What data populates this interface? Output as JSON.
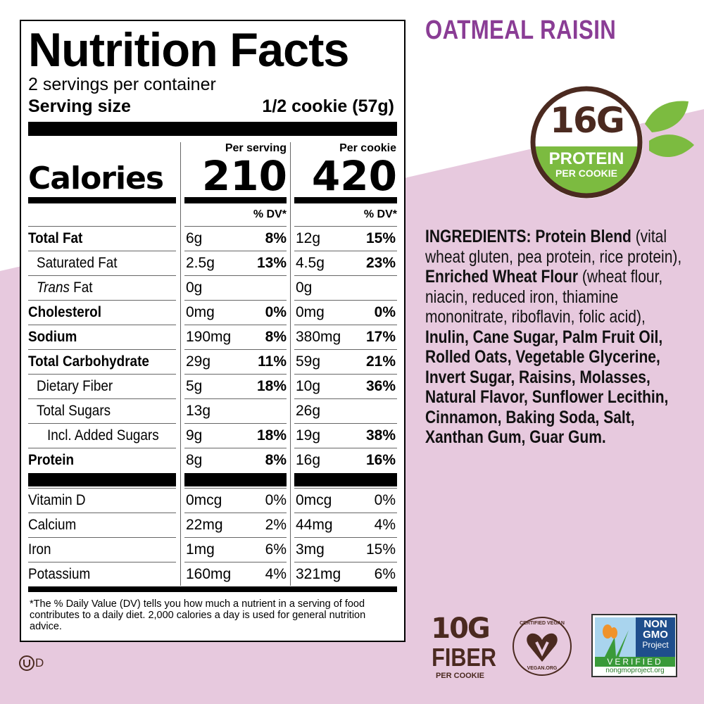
{
  "colors": {
    "pink": "#e7c9de",
    "purple": "#8a3d95",
    "brown": "#4b2a20",
    "green": "#7cbb40"
  },
  "label": {
    "title": "Nutrition Facts",
    "servings": "2 servings per container",
    "serving_size_label": "Serving size",
    "serving_size_value": "1/2 cookie (57g)",
    "calories_label": "Calories",
    "col1_header": "Per serving",
    "col2_header": "Per cookie",
    "calories_serving": "210",
    "calories_cookie": "420",
    "dv_header": "% DV*",
    "nutrients": [
      {
        "name": "Total Fat",
        "bold": true,
        "indent": 0,
        "a1": "6g",
        "d1": "8%",
        "a2": "12g",
        "d2": "15%"
      },
      {
        "name": "Saturated Fat",
        "bold": false,
        "indent": 1,
        "a1": "2.5g",
        "d1": "13%",
        "a2": "4.5g",
        "d2": "23%"
      },
      {
        "name": "Trans",
        "name_suffix": " Fat",
        "bold": false,
        "italic": true,
        "indent": 1,
        "a1": "0g",
        "d1": "",
        "a2": "0g",
        "d2": ""
      },
      {
        "name": "Cholesterol",
        "bold": true,
        "indent": 0,
        "a1": "0mg",
        "d1": "0%",
        "a2": "0mg",
        "d2": "0%"
      },
      {
        "name": "Sodium",
        "bold": true,
        "indent": 0,
        "a1": "190mg",
        "d1": "8%",
        "a2": "380mg",
        "d2": "17%"
      },
      {
        "name": "Total Carbohydrate",
        "bold": true,
        "indent": 0,
        "a1": "29g",
        "d1": "11%",
        "a2": "59g",
        "d2": "21%"
      },
      {
        "name": "Dietary Fiber",
        "bold": false,
        "indent": 1,
        "a1": "5g",
        "d1": "18%",
        "a2": "10g",
        "d2": "36%"
      },
      {
        "name": "Total Sugars",
        "bold": false,
        "indent": 1,
        "a1": "13g",
        "d1": "",
        "a2": "26g",
        "d2": ""
      },
      {
        "name": "Incl. Added Sugars",
        "bold": false,
        "indent": 2,
        "a1": "9g",
        "d1": "18%",
        "a2": "19g",
        "d2": "38%"
      },
      {
        "name": "Protein",
        "bold": true,
        "indent": 0,
        "a1": "8g",
        "d1": "8%",
        "a2": "16g",
        "d2": "16%"
      }
    ],
    "vitamins": [
      {
        "name": "Vitamin D",
        "a1": "0mcg",
        "d1": "0%",
        "a2": "0mcg",
        "d2": "0%"
      },
      {
        "name": "Calcium",
        "a1": "22mg",
        "d1": "2%",
        "a2": "44mg",
        "d2": "4%"
      },
      {
        "name": "Iron",
        "a1": "1mg",
        "d1": "6%",
        "a2": "3mg",
        "d2": "15%"
      },
      {
        "name": "Potassium",
        "a1": "160mg",
        "d1": "4%",
        "a2": "321mg",
        "d2": "6%"
      }
    ],
    "footnote": "*The % Daily Value (DV) tells you how much a nutrient in a serving of food contributes to a daily diet. 2,000 calories a day is used for general nutrition advice."
  },
  "kosher_mark": "UD",
  "flavor": "OATMEAL RAISIN",
  "protein_badge": {
    "amount": "16G",
    "label": "PROTEIN",
    "sub": "PER COOKIE"
  },
  "ingredients": [
    {
      "t": "INGREDIENTS: Protein Blend",
      "b": true
    },
    {
      "t": " (vital wheat gluten, pea protein, rice protein), ",
      "b": false
    },
    {
      "t": "Enriched Wheat Flour",
      "b": true
    },
    {
      "t": " (wheat flour, niacin, reduced iron, thiamine mononitrate, riboflavin, folic acid), ",
      "b": false
    },
    {
      "t": "Inulin, Cane Sugar, Palm Fruit Oil, Rolled Oats, Vegetable Glycerine, Invert Sugar, Raisins, Molasses, Natural Flavor, Sunflower Lecithin, Cinnamon, Baking Soda, Salt, Xanthan Gum, Guar Gum.",
      "b": true
    }
  ],
  "fiber_badge": {
    "amount": "10G",
    "label": "FIBER",
    "sub": "PER COOKIE"
  },
  "vegan_logo": {
    "top": "CERTIFIED VEGAN",
    "bottom": "VEGAN.ORG"
  },
  "nongmo_logo": {
    "line1": "NON",
    "line2": "GMO",
    "line3": "Project",
    "verified": "VERIFIED",
    "url": "nongmoproject.org"
  }
}
